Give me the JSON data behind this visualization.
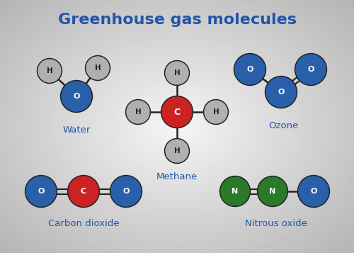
{
  "title": "Greenhouse gas molecules",
  "title_color": "#2255aa",
  "title_fontsize": 16,
  "label_color": "#2255aa",
  "label_fontsize": 9.5,
  "atom_colors": {
    "H": "#b0b0b0",
    "O": "#2a5faa",
    "C": "#cc2222",
    "N": "#2a7a2a"
  },
  "bond_color": "#222222",
  "outline_color": "#222222",
  "r_H": 0.022,
  "r_O": 0.028,
  "r_C": 0.028,
  "r_N": 0.028,
  "molecules": {
    "water": {
      "label": "Water"
    },
    "ozone": {
      "label": "Ozone"
    },
    "methane": {
      "label": "Methane"
    },
    "co2": {
      "label": "Carbon dioxide"
    },
    "nitrous": {
      "label": "Nitrous oxide"
    }
  }
}
